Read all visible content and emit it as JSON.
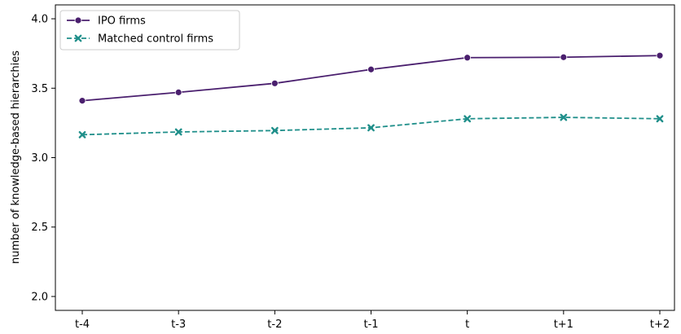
{
  "chart_data": {
    "type": "line",
    "title": "",
    "xlabel": "",
    "ylabel": "number of knowledge-based hierarchies",
    "categories": [
      "t-4",
      "t-3",
      "t-2",
      "t-1",
      "t",
      "t+1",
      "t+2"
    ],
    "ylim": [
      1.9,
      4.1
    ],
    "yticks": [
      2.0,
      2.5,
      3.0,
      3.5,
      4.0
    ],
    "ytick_labels": [
      "2.0",
      "2.5",
      "3.0",
      "3.5",
      "4.0"
    ],
    "grid": false,
    "legend_position": "top-left",
    "series": [
      {
        "name": "IPO firms",
        "values": [
          3.41,
          3.47,
          3.535,
          3.635,
          3.72,
          3.723,
          3.735
        ],
        "color": "#4a1f6e",
        "marker": "circle",
        "linestyle": "solid"
      },
      {
        "name": "Matched control firms",
        "values": [
          3.165,
          3.185,
          3.195,
          3.215,
          3.28,
          3.29,
          3.28
        ],
        "color": "#1f8f8a",
        "marker": "x",
        "linestyle": "dashed"
      }
    ]
  }
}
